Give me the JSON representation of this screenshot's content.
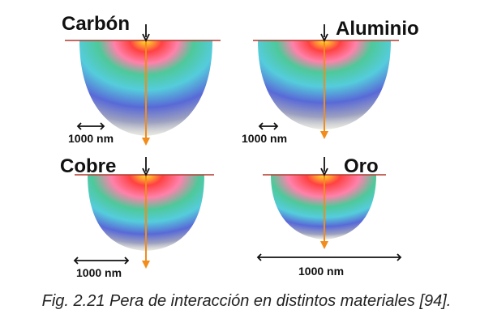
{
  "figure": {
    "caption": "Fig. 2.21 Pera de interacción en distintos materiales [94].",
    "panels": [
      {
        "material": "Carbón",
        "scale_text": "1000 nm"
      },
      {
        "material": "Aluminio",
        "scale_text": "1000 nm"
      },
      {
        "material": "Cobre",
        "scale_text": "1000 nm"
      },
      {
        "material": "Oro",
        "scale_text": "1000 nm"
      }
    ],
    "colors": {
      "surface_line": "#b0392c",
      "beam_arrow": "#f28c1a",
      "text": "#111111"
    }
  }
}
